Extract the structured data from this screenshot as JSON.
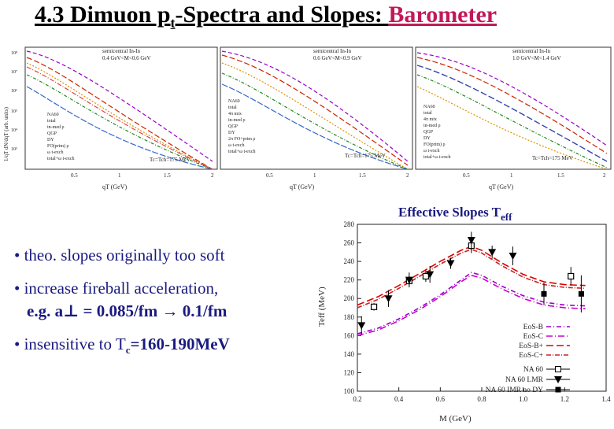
{
  "title": {
    "main": "4.3  Dimuon p",
    "sub_t": "t",
    "rest": "-Spectra and Slopes: ",
    "accent": "Barometer"
  },
  "panels": [
    {
      "header_line1": "semicentral In-In",
      "header_line2": "0.4 GeV<M<0.6 GeV",
      "tc_label": "Tc=Tch=175 MeV",
      "xlabel": "qT (GeV)",
      "ylabel": "1/qT dN/dqT (arb. units)",
      "x_ticks": [
        "0.5",
        "1",
        "1.5",
        "2"
      ],
      "y_ticks": [
        "10⁸",
        "10⁷",
        "10⁶",
        "10⁵",
        "10⁴",
        "10³"
      ],
      "legend": [
        "NA60",
        "total",
        "in-med ρ",
        "QGP",
        "DY",
        "FO(prim) ρ",
        "ω t-exch",
        "total+ω t-exch"
      ]
    },
    {
      "header_line1": "semicentral In-In",
      "header_line2": "0.6 GeV<M<0.9 GeV",
      "tc_label": "Tc=Tch=175 MeV",
      "xlabel": "qT (GeV)",
      "ylabel": "",
      "x_ticks": [
        "0.5",
        "1",
        "1.5",
        "2"
      ],
      "y_ticks": [],
      "legend": [
        "NA60",
        "total",
        "4π mix",
        "in-med ρ",
        "QGP",
        "DY",
        "2π FO+prim ρ",
        "ω t-exch",
        "total+ω t-exch"
      ]
    },
    {
      "header_line1": "semicentral In-In",
      "header_line2": "1.0 GeV<M<1.4 GeV",
      "tc_label": "Tc=Tch=175 MeV",
      "xlabel": "qT (GeV)",
      "ylabel": "",
      "x_ticks": [
        "0.5",
        "1",
        "1.5",
        "2"
      ],
      "y_ticks": [],
      "legend": [
        "NA60",
        "total",
        "4π mix",
        "in-med ρ",
        "QGP",
        "DY",
        "FO(prim) ρ",
        "ω t-exch",
        "total+ω t-exch"
      ]
    }
  ],
  "bullets": [
    {
      "text": "• theo. slopes originally too soft"
    },
    {
      "text": "• increase fireball acceleration,",
      "sub": "e.g.   a⊥ = 0.085/fm → 0.1/fm"
    },
    {
      "text": "• insensitive to T",
      "sub_c": "c",
      "rest": "=160-190MeV"
    }
  ],
  "chart_data": {
    "type": "line",
    "title": "Effective Slopes T",
    "title_sub": "eff",
    "xlabel": "M (GeV)",
    "ylabel": "Teff (MeV)",
    "xlim": [
      0.2,
      1.4
    ],
    "ylim": [
      100,
      280
    ],
    "x_ticks": [
      0.2,
      0.4,
      0.6,
      0.8,
      1.0,
      1.2,
      1.4
    ],
    "y_ticks": [
      100,
      120,
      140,
      160,
      180,
      200,
      220,
      240,
      260,
      280
    ],
    "grid": false,
    "legend_position": "bottom-right",
    "series": [
      {
        "name": "EoS-B",
        "color": "#9900cc",
        "dash": "6,3,1,3",
        "x": [
          0.2,
          0.3,
          0.4,
          0.5,
          0.6,
          0.7,
          0.75,
          0.8,
          0.9,
          1.0,
          1.1,
          1.2,
          1.3
        ],
        "y": [
          162,
          168,
          178,
          190,
          204,
          220,
          228,
          225,
          213,
          203,
          196,
          193,
          192
        ]
      },
      {
        "name": "EoS-C",
        "color": "#cc00cc",
        "dash": "8,3,1,3",
        "x": [
          0.2,
          0.3,
          0.4,
          0.5,
          0.6,
          0.7,
          0.75,
          0.8,
          0.9,
          1.0,
          1.1,
          1.2,
          1.3
        ],
        "y": [
          160,
          166,
          176,
          188,
          202,
          218,
          225,
          222,
          210,
          200,
          193,
          190,
          189
        ]
      },
      {
        "name": "EoS-B+",
        "color": "#dd0000",
        "dash": "9,4",
        "x": [
          0.2,
          0.3,
          0.4,
          0.5,
          0.6,
          0.7,
          0.75,
          0.8,
          0.9,
          1.0,
          1.1,
          1.2,
          1.3
        ],
        "y": [
          193,
          202,
          214,
          227,
          240,
          252,
          256,
          252,
          238,
          226,
          218,
          215,
          214
        ]
      },
      {
        "name": "EoS-C+",
        "color": "#cc2222",
        "dash": "6,2,1,2",
        "x": [
          0.2,
          0.3,
          0.4,
          0.5,
          0.6,
          0.7,
          0.75,
          0.8,
          0.9,
          1.0,
          1.1,
          1.2,
          1.3
        ],
        "y": [
          190,
          199,
          211,
          224,
          237,
          249,
          253,
          249,
          235,
          223,
          215,
          212,
          211
        ]
      }
    ],
    "points": [
      {
        "name": "NA 60",
        "marker": "open-square",
        "x": [
          0.28,
          0.45,
          0.53,
          0.75,
          1.23
        ],
        "y": [
          191,
          219,
          224,
          257,
          224
        ],
        "err": [
          4,
          5,
          6,
          8,
          10
        ]
      },
      {
        "name": "NA 60 LMR",
        "marker": "filled-triangle-down",
        "x": [
          0.22,
          0.35,
          0.45,
          0.55,
          0.65,
          0.75,
          0.85,
          0.95
        ],
        "y": [
          171,
          200,
          220,
          226,
          238,
          263,
          250,
          246
        ],
        "err": [
          10,
          9,
          8,
          9,
          6,
          9,
          7,
          10
        ]
      },
      {
        "name": "NA 60 IMR no DY",
        "marker": "filled-square",
        "x": [
          1.1,
          1.28
        ],
        "y": [
          205,
          205
        ],
        "err": [
          12,
          20
        ]
      }
    ]
  }
}
